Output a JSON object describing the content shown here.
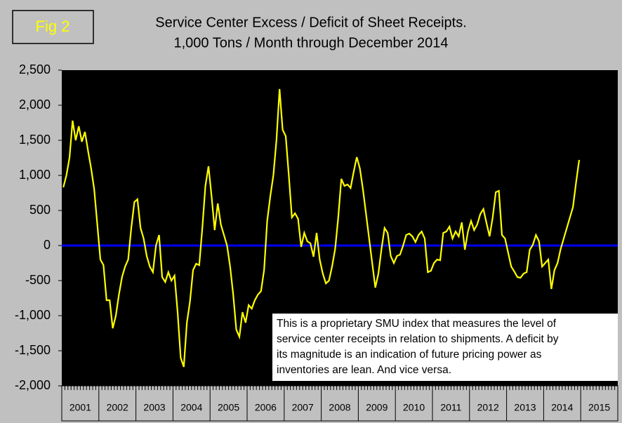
{
  "chart_data": {
    "type": "line",
    "label": "Fig 2",
    "title": "Service Center Excess / Deficit of Sheet Receipts.",
    "subtitle": "1,000 Tons / Month through December 2014",
    "x_labels": [
      "2001",
      "2002",
      "2003",
      "2004",
      "2005",
      "2006",
      "2007",
      "2008",
      "2009",
      "2010",
      "2011",
      "2012",
      "2013",
      "2014",
      "2015"
    ],
    "series": [
      {
        "color": "#ffff00",
        "values": [
          830,
          1000,
          1250,
          1780,
          1500,
          1700,
          1480,
          1620,
          1350,
          1100,
          800,
          300,
          -200,
          -280,
          -780,
          -780,
          -1180,
          -1000,
          -700,
          -450,
          -300,
          -200,
          250,
          620,
          660,
          250,
          100,
          -150,
          -300,
          -380,
          0,
          150,
          -450,
          -520,
          -380,
          -500,
          -430,
          -950,
          -1600,
          -1730,
          -1100,
          -800,
          -350,
          -260,
          -280,
          250,
          850,
          1130,
          700,
          220,
          600,
          300,
          150,
          0,
          -300,
          -700,
          -1200,
          -1300,
          -950,
          -1100,
          -850,
          -900,
          -780,
          -700,
          -650,
          -350,
          350,
          700,
          1000,
          1500,
          2230,
          1650,
          1560,
          1000,
          400,
          460,
          380,
          -20,
          180,
          60,
          30,
          -160,
          180,
          -200,
          -400,
          -540,
          -500,
          -300,
          -50,
          400,
          950,
          850,
          870,
          820,
          1050,
          1260,
          1100,
          800,
          450,
          100,
          -250,
          -600,
          -400,
          -50,
          250,
          180,
          -150,
          -250,
          -150,
          -130,
          0,
          150,
          170,
          130,
          50,
          150,
          200,
          100,
          -380,
          -360,
          -250,
          -200,
          -210,
          180,
          200,
          270,
          100,
          200,
          130,
          330,
          -60,
          200,
          350,
          220,
          300,
          450,
          520,
          320,
          130,
          400,
          760,
          780,
          150,
          100,
          -100,
          -300,
          -370,
          -450,
          -460,
          -400,
          -380,
          -60,
          10,
          150,
          60,
          -300,
          -250,
          -200,
          -620,
          -350,
          -250,
          -50,
          100,
          250,
          400,
          550,
          900,
          1220
        ]
      }
    ],
    "ylim": [
      -2000,
      2500
    ],
    "yticks": [
      {
        "value": -2000,
        "label": "-2,000"
      },
      {
        "value": -1500,
        "label": "-1,500"
      },
      {
        "value": -1000,
        "label": "-1,000"
      },
      -500,
      0,
      500,
      {
        "value": 1000,
        "label": "1,000"
      },
      {
        "value": 1500,
        "label": "1,500"
      },
      {
        "value": 2000,
        "label": "2,000"
      },
      {
        "value": 2500,
        "label": "2,500"
      }
    ],
    "reference_line": {
      "value": 0,
      "color": "#0000ff"
    },
    "annotation": [
      "This is a proprietary SMU index that measures the level of",
      "service center receipts in relation to shipments. A deficit by",
      "its magnitude is an indication of future pricing power as",
      "inventories are lean. And vice versa."
    ]
  }
}
